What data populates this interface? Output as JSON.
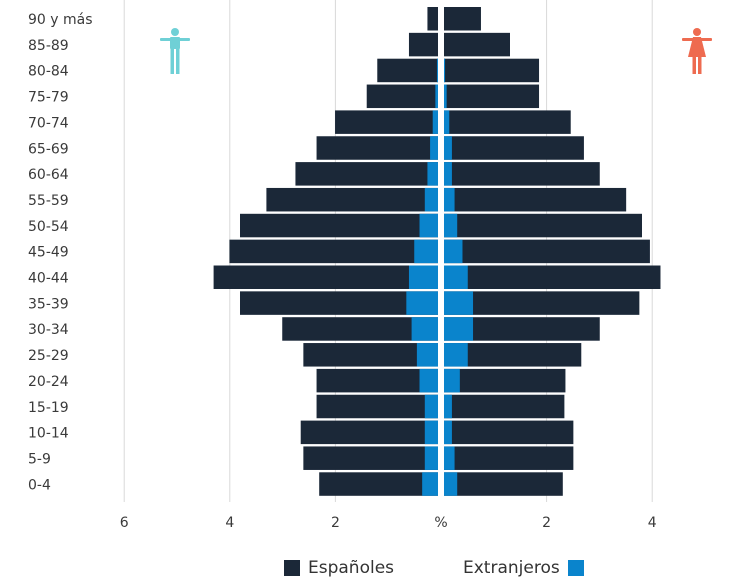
{
  "colors": {
    "espanoles": "#1b2838",
    "extranjeros": "#0a84cc",
    "grid": "#d9d9d9",
    "male_icon": "#6fd0d6",
    "female_icon": "#ee6b50"
  },
  "icons": {
    "male": "male-figure-icon",
    "female": "female-figure-icon"
  },
  "legend": {
    "espanoles": "Españoles",
    "extranjeros": "Extranjeros"
  },
  "chart_data": {
    "type": "bar",
    "orientation": "horizontal-population-pyramid",
    "x_unit_label": "%",
    "x_ticks": [
      "6",
      "4",
      "2",
      "%",
      "2",
      "4"
    ],
    "xlim": [
      -6,
      4.5
    ],
    "grid": true,
    "categories": [
      "90 y más",
      "85-89",
      "80-84",
      "75-79",
      "70-74",
      "65-69",
      "60-64",
      "55-59",
      "50-54",
      "45-49",
      "40-44",
      "35-39",
      "30-34",
      "25-29",
      "20-24",
      "15-19",
      "10-14",
      "5-9",
      "0-4"
    ],
    "series": [
      {
        "name": "Españoles",
        "side": "male",
        "values": [
          0.2,
          0.55,
          1.15,
          1.35,
          1.95,
          2.3,
          2.7,
          3.25,
          3.75,
          3.95,
          4.25,
          3.75,
          2.95,
          2.55,
          2.3,
          2.3,
          2.6,
          2.55,
          2.25
        ]
      },
      {
        "name": "Extranjeros",
        "side": "male",
        "values": [
          0,
          0,
          0.02,
          0.05,
          0.1,
          0.15,
          0.2,
          0.25,
          0.35,
          0.45,
          0.55,
          0.6,
          0.5,
          0.4,
          0.35,
          0.25,
          0.25,
          0.25,
          0.3
        ]
      },
      {
        "name": "Españoles",
        "side": "female",
        "values": [
          0.7,
          1.25,
          1.8,
          1.8,
          2.4,
          2.65,
          2.95,
          3.45,
          3.75,
          3.9,
          4.1,
          3.7,
          2.95,
          2.6,
          2.3,
          2.28,
          2.45,
          2.45,
          2.25
        ]
      },
      {
        "name": "Extranjeros",
        "side": "female",
        "values": [
          0,
          0,
          0.02,
          0.05,
          0.1,
          0.15,
          0.15,
          0.2,
          0.25,
          0.35,
          0.45,
          0.55,
          0.55,
          0.45,
          0.3,
          0.15,
          0.15,
          0.2,
          0.25
        ]
      }
    ]
  }
}
